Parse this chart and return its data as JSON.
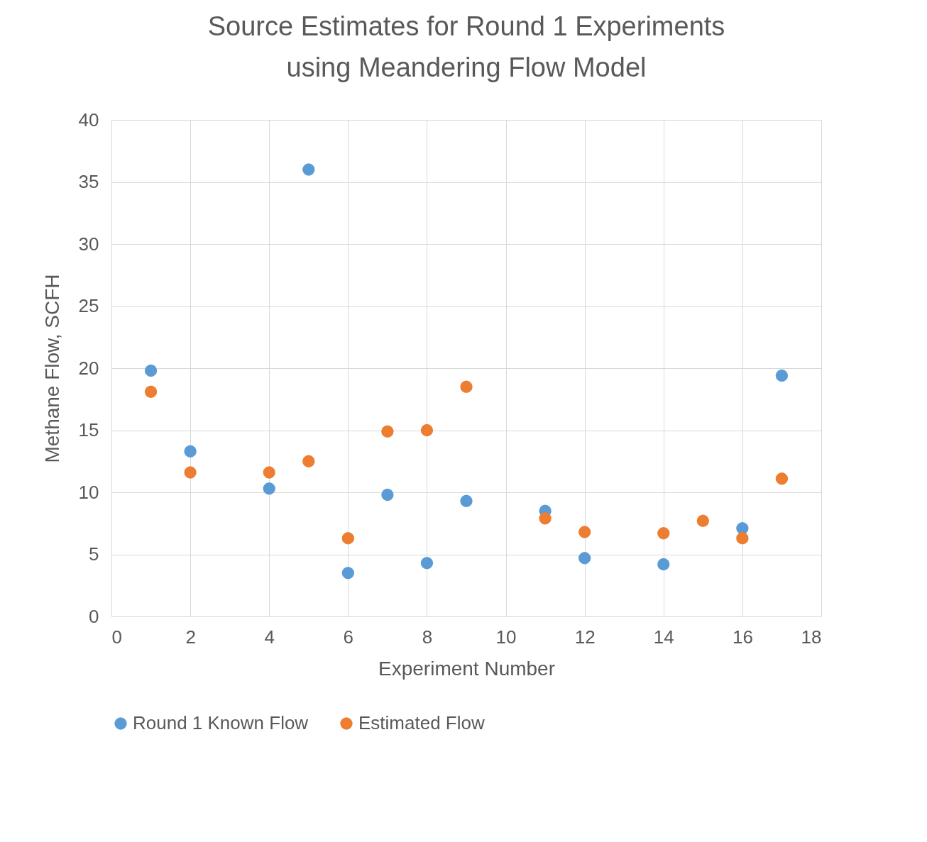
{
  "chart_data": {
    "type": "scatter",
    "title": "Source Estimates for Round 1 Experiments using Meandering Flow Model",
    "xlabel": "Experiment Number",
    "ylabel": "Methane Flow, SCFH",
    "x": [
      1,
      2,
      4,
      5,
      6,
      7,
      8,
      9,
      11,
      12,
      14,
      15,
      16,
      17
    ],
    "series": [
      {
        "name": "Round 1 Known Flow",
        "color": "#5b9bd5",
        "values": [
          19.8,
          13.3,
          10.3,
          36.0,
          3.5,
          9.8,
          4.3,
          9.3,
          8.5,
          4.7,
          4.2,
          null,
          7.1,
          19.4
        ]
      },
      {
        "name": "Estimated Flow",
        "color": "#ed7d31",
        "values": [
          18.1,
          11.6,
          11.6,
          12.5,
          6.3,
          14.9,
          15.0,
          18.5,
          7.9,
          6.8,
          6.7,
          7.7,
          6.3,
          11.1
        ]
      }
    ],
    "xlim": [
      0,
      18
    ],
    "xticks": [
      0,
      2,
      4,
      6,
      8,
      10,
      12,
      14,
      16,
      18
    ],
    "ylim": [
      0,
      40
    ],
    "yticks": [
      0,
      5,
      10,
      15,
      20,
      25,
      30,
      35,
      40
    ],
    "grid": true,
    "legend": "bottom",
    "marker": "circle"
  }
}
